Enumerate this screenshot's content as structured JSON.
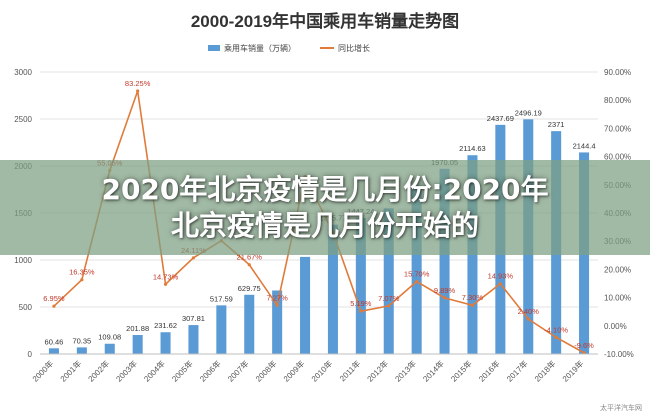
{
  "chart_data": {
    "type": "bar",
    "title": "2000-2019年中国乘用车销量走势图",
    "categories": [
      "2000年",
      "2001年",
      "2002年",
      "2003年",
      "2004年",
      "2005年",
      "2006年",
      "2007年",
      "2008年",
      "2009年",
      "2010年",
      "2011年",
      "2012年",
      "2013年",
      "2014年",
      "2015年",
      "2016年",
      "2017年",
      "2018年",
      "2019年"
    ],
    "series": [
      {
        "name": "乘用车销量（万辆）",
        "type": "bar",
        "color": "#5b9bd5",
        "axis": "left",
        "values": [
          60.46,
          70.35,
          109.08,
          201.88,
          231.62,
          307.81,
          517.59,
          629.75,
          675.56,
          1033.13,
          1375.77,
          1447.24,
          1549.52,
          1792.89,
          1970.05,
          2114.63,
          2437.69,
          2496.19,
          2371,
          2144.4
        ],
        "labels": [
          "60.46",
          "70.35",
          "109.08",
          "201.88",
          "231.62",
          "307.81",
          "517.59",
          "629.75",
          "",
          "",
          "1375.77",
          "1447.24",
          "",
          "",
          "1970.05",
          "2114.63",
          "2437.69",
          "2496.19",
          "2371",
          "2144.4"
        ]
      },
      {
        "name": "同比增长",
        "type": "line",
        "color": "#e07b39",
        "axis": "right",
        "values": [
          6.95,
          16.35,
          55.05,
          83.25,
          14.73,
          24.11,
          30.16,
          21.67,
          7.27,
          52.93,
          33.17,
          5.19,
          7.07,
          15.7,
          9.89,
          7.3,
          14.93,
          2.4,
          -4.1,
          -9.6
        ],
        "labels": [
          "6.95%",
          "16.35%",
          "55.05%",
          "83.25%",
          "14.73%",
          "24.11%",
          "",
          "21.67%",
          "7.27%",
          "",
          "",
          "5.19%",
          "7.07%",
          "15.70%",
          "9.89%",
          "7.30%",
          "14.93%",
          "2.40%",
          "-4.10%",
          "-9.6%"
        ]
      }
    ],
    "y_left": {
      "min": 0,
      "max": 3000,
      "ticks": [
        "0",
        "500",
        "1000",
        "1500",
        "2000",
        "2500",
        "3000"
      ]
    },
    "y_right": {
      "min": -10,
      "max": 90,
      "ticks": [
        "-10.00%",
        "0.00%",
        "10.00%",
        "20.00%",
        "30.00%",
        "40.00%",
        "50.00%",
        "60.00%",
        "70.00%",
        "80.00%",
        "90.00%"
      ]
    },
    "legend": {
      "placement": "top-center"
    },
    "grid": true
  },
  "overlay": {
    "line1": "2020年北京疫情是几月份:2020年",
    "line2": "北京疫情是几月份开始的"
  },
  "watermark": "太平洋汽车网"
}
